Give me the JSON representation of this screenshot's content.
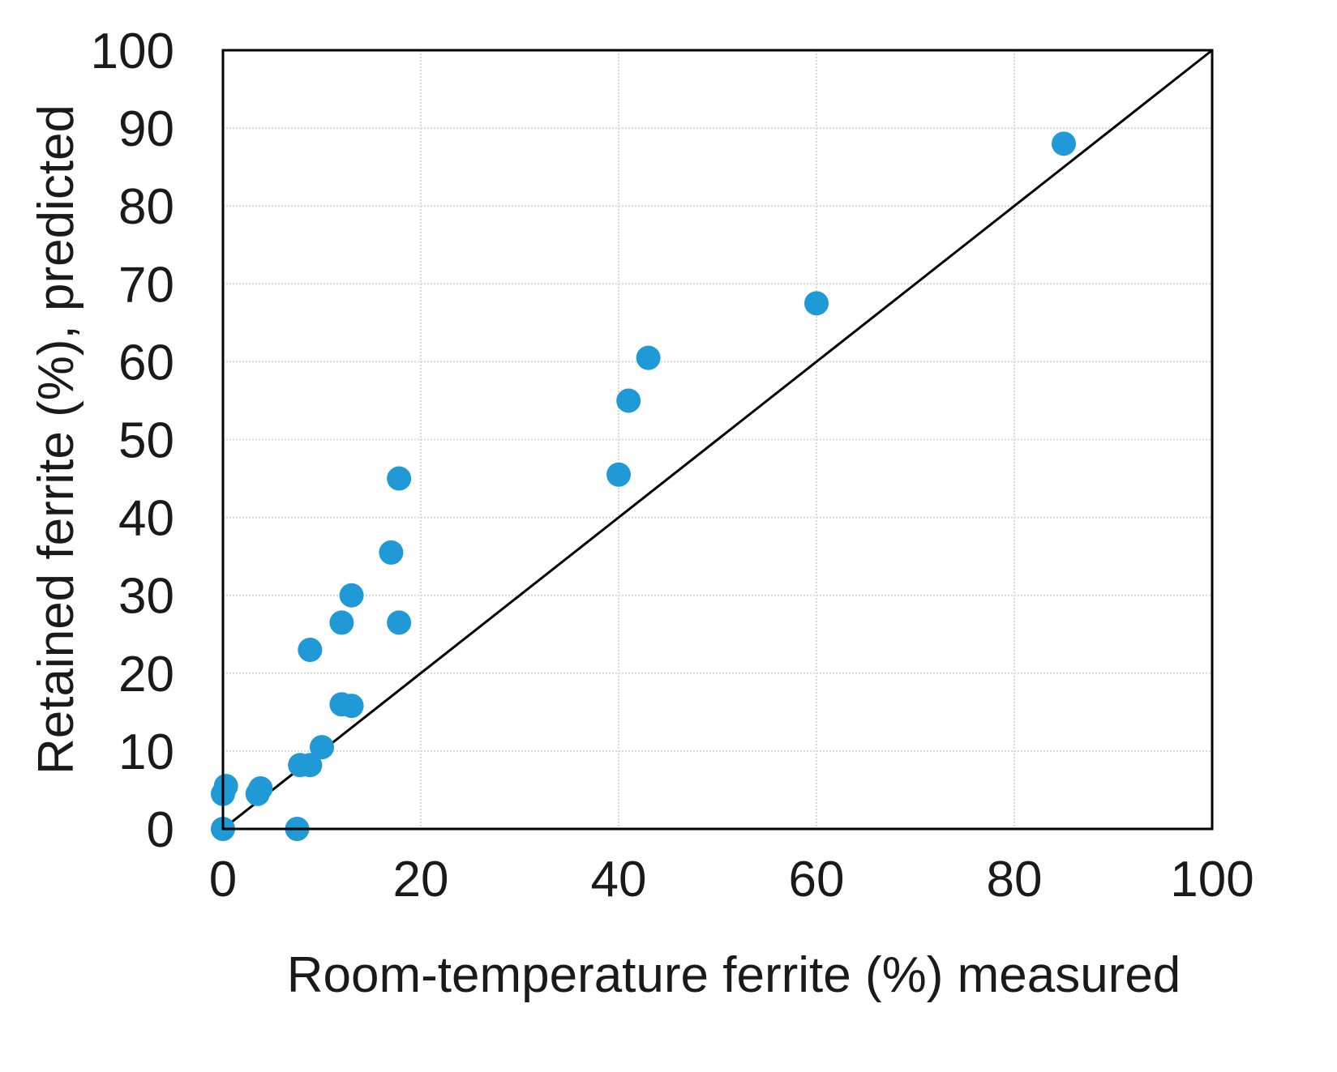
{
  "chart_data": {
    "type": "scatter",
    "title": "",
    "xlabel": "Room-temperature ferrite (%) measured",
    "ylabel": "Retained ferrite (%), predicted",
    "xlim": [
      0,
      100
    ],
    "ylim": [
      0,
      100
    ],
    "x_ticks": [
      "0",
      "20",
      "40",
      "60",
      "80",
      "100"
    ],
    "y_ticks": [
      "0",
      "10",
      "20",
      "30",
      "40",
      "50",
      "60",
      "70",
      "80",
      "90",
      "100"
    ],
    "grid": true,
    "reference_line": {
      "type": "y=x",
      "from": [
        0,
        0
      ],
      "to": [
        100,
        100
      ]
    },
    "marker_color": "#1f9ad6",
    "series": [
      {
        "points": [
          {
            "x": 0,
            "y": 0
          },
          {
            "x": 0,
            "y": 4.5
          },
          {
            "x": 0.3,
            "y": 5.5
          },
          {
            "x": 3.5,
            "y": 4.5
          },
          {
            "x": 3.8,
            "y": 5.2
          },
          {
            "x": 7.5,
            "y": 0
          },
          {
            "x": 7.8,
            "y": 8.2
          },
          {
            "x": 8.8,
            "y": 8.2
          },
          {
            "x": 10.0,
            "y": 10.5
          },
          {
            "x": 12.0,
            "y": 16.0
          },
          {
            "x": 13.0,
            "y": 15.8
          },
          {
            "x": 8.8,
            "y": 23.0
          },
          {
            "x": 12.0,
            "y": 26.5
          },
          {
            "x": 13.0,
            "y": 30.0
          },
          {
            "x": 17.0,
            "y": 35.5
          },
          {
            "x": 17.8,
            "y": 26.5
          },
          {
            "x": 17.8,
            "y": 45.0
          },
          {
            "x": 40.0,
            "y": 45.5
          },
          {
            "x": 41.0,
            "y": 55.0
          },
          {
            "x": 43.0,
            "y": 60.5
          },
          {
            "x": 60.0,
            "y": 67.5
          },
          {
            "x": 85.0,
            "y": 88.0
          }
        ]
      }
    ]
  }
}
